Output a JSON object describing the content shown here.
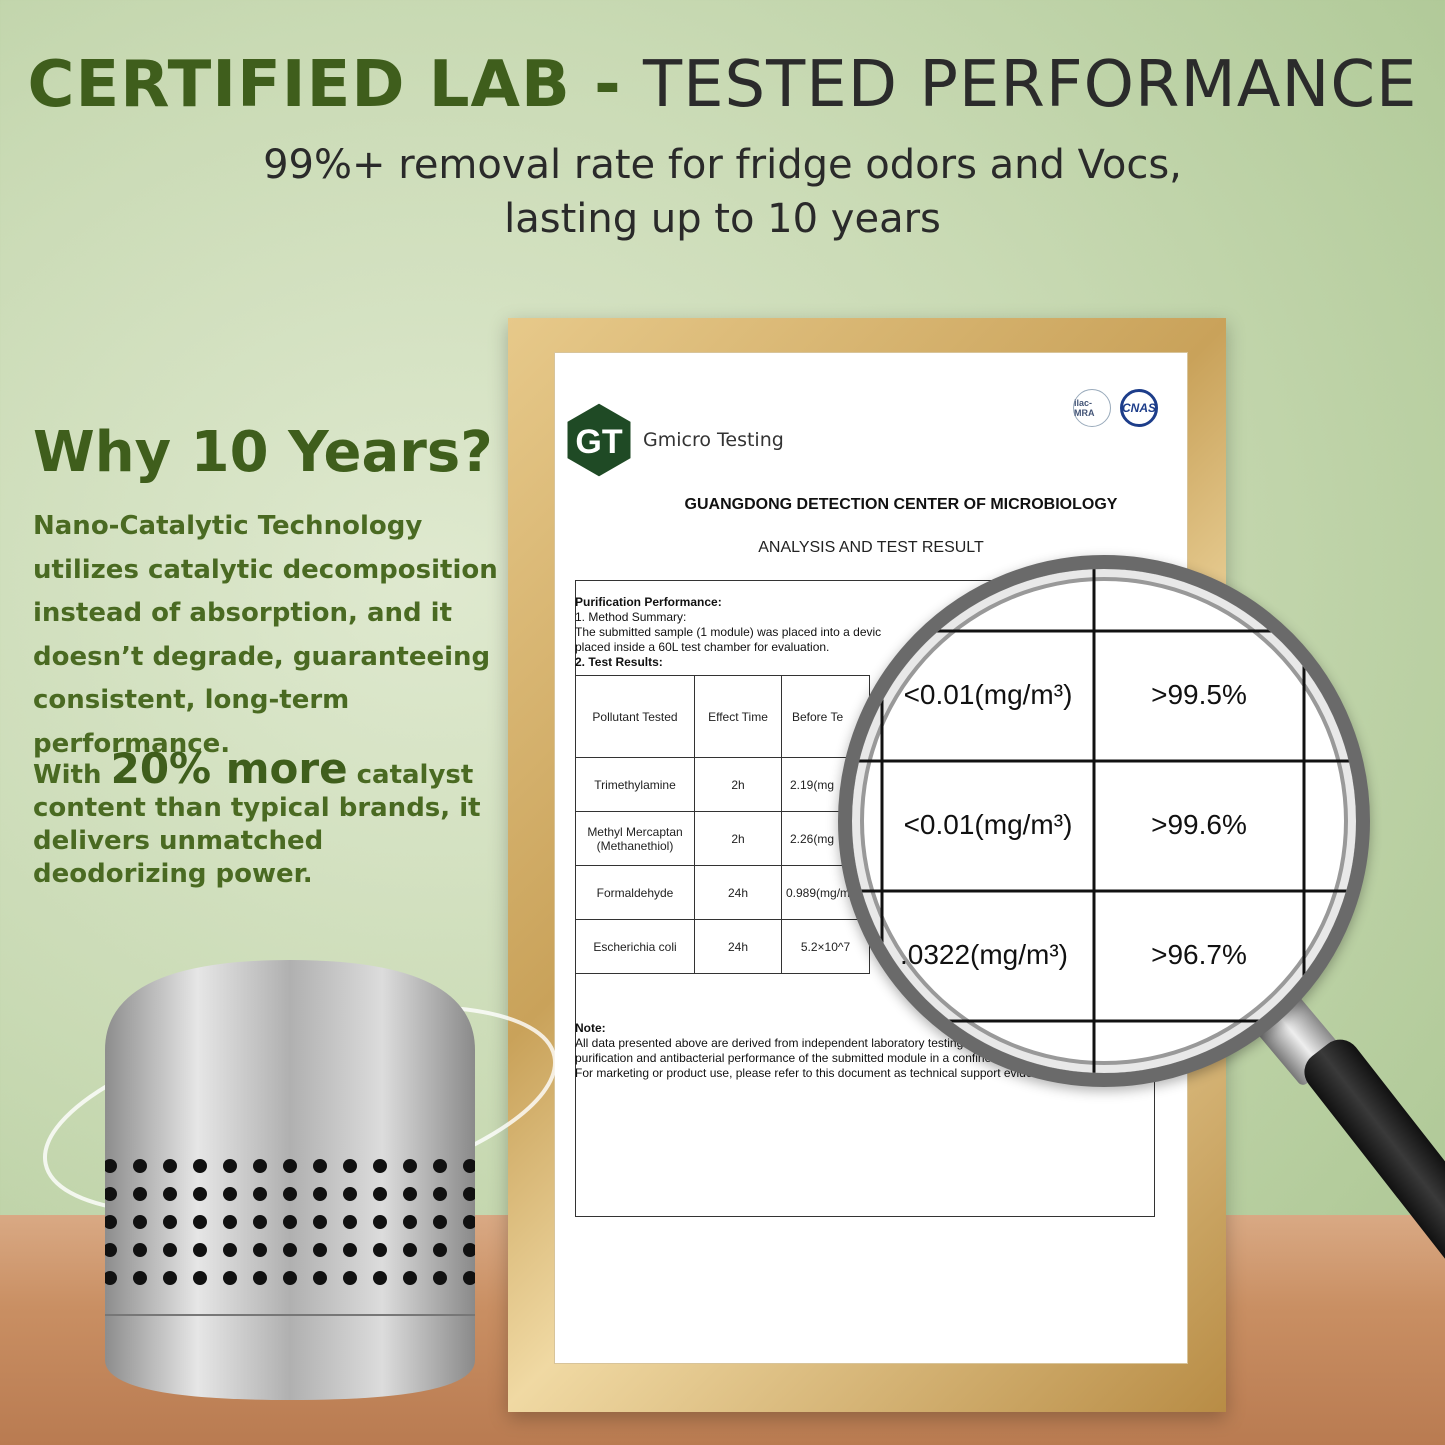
{
  "header": {
    "title_bold": "CERTIFIED LAB -",
    "title_light": " TESTED PERFORMANCE",
    "subtitle_line1": "99%+ removal rate for fridge odors and Vocs,",
    "subtitle_line2": "lasting up to 10 years"
  },
  "left": {
    "heading": "Why 10 Years?",
    "paragraph1": "Nano-Catalytic Technology utilizes catalytic decomposition instead of absorption, and it doesn’t degrade, guaranteeing consistent, long-term performance.",
    "p2_prefix": "With ",
    "p2_highlight": "20% more",
    "p2_suffix": " catalyst content than typical brands, it delivers unmatched deodorizing power."
  },
  "certificate": {
    "logo_text": "GT",
    "brand": "Gmicro Testing",
    "accreditation": [
      "ilac-MRA",
      "CNAS"
    ],
    "org": "GUANGDONG DETECTION CENTER OF MICROBIOLOGY",
    "doc_title": "ANALYSIS AND TEST RESULT",
    "section": "Purification Performance:",
    "method_heading": "1. Method Summary:",
    "method_line1": "The submitted sample (1 module) was placed into a devic",
    "method_line2": "placed inside a 60L test chamber for evaluation.",
    "results_heading": "2. Test Results:",
    "columns": [
      "Pollutant Tested",
      "Effect Time",
      "Before Te"
    ],
    "rows": [
      {
        "pollutant": "Trimethylamine",
        "time": "2h",
        "before": "2.19(mg"
      },
      {
        "pollutant": "Methyl Mercaptan (Methanethiol)",
        "time": "2h",
        "before": "2.26(mg"
      },
      {
        "pollutant": "Formaldehyde",
        "time": "24h",
        "before": "0.989(mg/m"
      },
      {
        "pollutant": "Escherichia coli",
        "time": "24h",
        "before": "5.2×10^7"
      }
    ],
    "note_heading": "Note:",
    "note_line1": "All data presented above are derived from independent laboratory testing.",
    "note_line2": "purification and antibacterial performance of the submitted module in a confined",
    "note_line3": "For marketing or product use, please refer to this document as technical support evidence."
  },
  "magnifier": {
    "rows": [
      {
        "after": "<0.01(mg/m³)",
        "rate": ">99.5%"
      },
      {
        "after": "<0.01(mg/m³)",
        "rate": ">99.6%"
      },
      {
        "after": ".0322(mg/m³)",
        "rate": ">96.7%"
      }
    ]
  },
  "colors": {
    "accent_green": "#3f5e1c",
    "text_green": "#4a6a22",
    "logo_green": "#1f4a25",
    "cnas_blue": "#1d3d8a"
  }
}
